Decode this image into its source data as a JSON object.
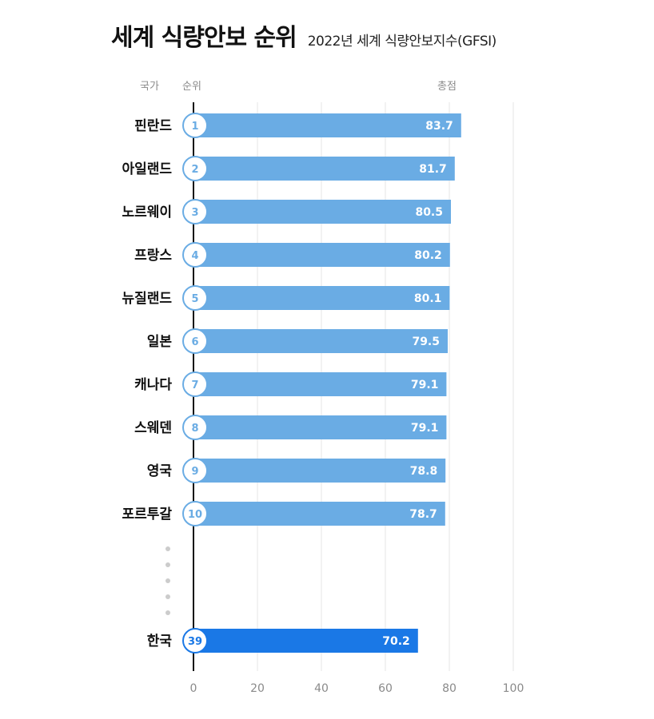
{
  "title": "세계 식량안보 순위",
  "subtitle": "2022년 세계 식량안보지수(GFSI)",
  "headers": {
    "country": "국가",
    "rank": "순위",
    "score": "총점"
  },
  "chart_data": {
    "type": "bar",
    "orientation": "horizontal",
    "title": "세계 식량안보 순위",
    "subtitle": "2022년 세계 식량안보지수(GFSI)",
    "rows": [
      {
        "country": "핀란드",
        "rank": 1,
        "value": 83.7,
        "label": "83.7",
        "highlight": false
      },
      {
        "country": "아일랜드",
        "rank": 2,
        "value": 81.7,
        "label": "81.7",
        "highlight": false
      },
      {
        "country": "노르웨이",
        "rank": 3,
        "value": 80.5,
        "label": "80.5",
        "highlight": false
      },
      {
        "country": "프랑스",
        "rank": 4,
        "value": 80.2,
        "label": "80.2",
        "highlight": false
      },
      {
        "country": "뉴질랜드",
        "rank": 5,
        "value": 80.1,
        "label": "80.1",
        "highlight": false
      },
      {
        "country": "일본",
        "rank": 6,
        "value": 79.5,
        "label": "79.5",
        "highlight": false
      },
      {
        "country": "캐나다",
        "rank": 7,
        "value": 79.1,
        "label": "79.1",
        "highlight": false
      },
      {
        "country": "스웨덴",
        "rank": 8,
        "value": 79.1,
        "label": "79.1",
        "highlight": false
      },
      {
        "country": "영국",
        "rank": 9,
        "value": 78.8,
        "label": "78.8",
        "highlight": false
      },
      {
        "country": "포르투갈",
        "rank": 10,
        "value": 78.7,
        "label": "78.7",
        "highlight": false
      },
      {
        "country": "한국",
        "rank": 39,
        "value": 70.2,
        "label": "70.2",
        "highlight": true
      }
    ],
    "xlim": [
      0,
      100
    ],
    "xticks": [
      0,
      20,
      40,
      60,
      80,
      100
    ],
    "grid": true,
    "colors": {
      "bar": "#6aace4",
      "highlight": "#1a78e6",
      "rank_text": "#6aace4",
      "highlight_rank_text": "#1a78e6",
      "grid": "#e6e6e6",
      "ellipsis": "#cccccc"
    }
  }
}
